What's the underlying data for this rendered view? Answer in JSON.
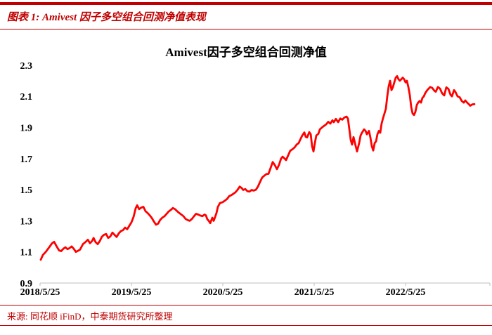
{
  "header": {
    "title": "图表 1: Amivest 因子多空组合回测净值表现"
  },
  "footer": {
    "source": "来源: 同花顺 iFinD，中泰期货研究所整理"
  },
  "colors": {
    "accent_red": "#C00000",
    "line_red": "#FE0000",
    "axis_gray": "#BFBFBF",
    "text_black": "#000000"
  },
  "chart_data": {
    "type": "line",
    "title": "Amivest因子多空组合回测净值",
    "legend": "none",
    "grid": "off",
    "line_color": "#FE0000",
    "x_axis": {
      "tick_labels": [
        "2018/5/25",
        "2019/5/25",
        "2020/5/25",
        "2021/5/25",
        "2022/5/25"
      ],
      "tick_years_from_start": [
        0,
        1,
        2,
        3,
        4
      ],
      "axis_years_span": [
        0,
        4.92
      ]
    },
    "y_axis": {
      "ticks": [
        2.3,
        2.1,
        1.9,
        1.7,
        1.5,
        1.3,
        1.1,
        0.9
      ],
      "range": [
        0.9,
        2.3
      ]
    },
    "series": [
      {
        "name": "Amivest因子多空组合回测净值",
        "points_years_value": [
          [
            0.008,
            1.05
          ],
          [
            0.031,
            1.08
          ],
          [
            0.062,
            1.1
          ],
          [
            0.1,
            1.13
          ],
          [
            0.131,
            1.155
          ],
          [
            0.154,
            1.165
          ],
          [
            0.177,
            1.14
          ],
          [
            0.208,
            1.11
          ],
          [
            0.231,
            1.105
          ],
          [
            0.254,
            1.12
          ],
          [
            0.277,
            1.13
          ],
          [
            0.3,
            1.118
          ],
          [
            0.323,
            1.125
          ],
          [
            0.346,
            1.135
          ],
          [
            0.369,
            1.12
          ],
          [
            0.392,
            1.1
          ],
          [
            0.415,
            1.107
          ],
          [
            0.438,
            1.115
          ],
          [
            0.469,
            1.15
          ],
          [
            0.5,
            1.165
          ],
          [
            0.523,
            1.178
          ],
          [
            0.546,
            1.156
          ],
          [
            0.569,
            1.17
          ],
          [
            0.585,
            1.19
          ],
          [
            0.608,
            1.163
          ],
          [
            0.631,
            1.15
          ],
          [
            0.654,
            1.17
          ],
          [
            0.677,
            1.198
          ],
          [
            0.7,
            1.21
          ],
          [
            0.723,
            1.215
          ],
          [
            0.746,
            1.19
          ],
          [
            0.769,
            1.2
          ],
          [
            0.792,
            1.224
          ],
          [
            0.815,
            1.21
          ],
          [
            0.838,
            1.196
          ],
          [
            0.862,
            1.22
          ],
          [
            0.885,
            1.234
          ],
          [
            0.908,
            1.24
          ],
          [
            0.931,
            1.256
          ],
          [
            0.954,
            1.246
          ],
          [
            0.977,
            1.268
          ],
          [
            1.0,
            1.29
          ],
          [
            1.023,
            1.325
          ],
          [
            1.046,
            1.38
          ],
          [
            1.062,
            1.4
          ],
          [
            1.085,
            1.375
          ],
          [
            1.108,
            1.385
          ],
          [
            1.131,
            1.39
          ],
          [
            1.154,
            1.362
          ],
          [
            1.177,
            1.35
          ],
          [
            1.2,
            1.335
          ],
          [
            1.223,
            1.318
          ],
          [
            1.246,
            1.295
          ],
          [
            1.269,
            1.275
          ],
          [
            1.292,
            1.282
          ],
          [
            1.315,
            1.306
          ],
          [
            1.338,
            1.32
          ],
          [
            1.362,
            1.33
          ],
          [
            1.385,
            1.345
          ],
          [
            1.408,
            1.36
          ],
          [
            1.431,
            1.37
          ],
          [
            1.454,
            1.382
          ],
          [
            1.477,
            1.375
          ],
          [
            1.5,
            1.362
          ],
          [
            1.523,
            1.35
          ],
          [
            1.546,
            1.34
          ],
          [
            1.569,
            1.33
          ],
          [
            1.592,
            1.312
          ],
          [
            1.615,
            1.305
          ],
          [
            1.638,
            1.3
          ],
          [
            1.662,
            1.312
          ],
          [
            1.685,
            1.33
          ],
          [
            1.708,
            1.345
          ],
          [
            1.731,
            1.34
          ],
          [
            1.754,
            1.334
          ],
          [
            1.777,
            1.33
          ],
          [
            1.8,
            1.34
          ],
          [
            1.815,
            1.335
          ],
          [
            1.831,
            1.31
          ],
          [
            1.846,
            1.3
          ],
          [
            1.862,
            1.285
          ],
          [
            1.885,
            1.32
          ],
          [
            1.9,
            1.3
          ],
          [
            1.915,
            1.324
          ],
          [
            1.931,
            1.35
          ],
          [
            1.946,
            1.39
          ],
          [
            1.969,
            1.414
          ],
          [
            2.0,
            1.42
          ],
          [
            2.023,
            1.43
          ],
          [
            2.046,
            1.44
          ],
          [
            2.069,
            1.458
          ],
          [
            2.092,
            1.465
          ],
          [
            2.115,
            1.474
          ],
          [
            2.138,
            1.483
          ],
          [
            2.162,
            1.5
          ],
          [
            2.185,
            1.52
          ],
          [
            2.208,
            1.51
          ],
          [
            2.223,
            1.498
          ],
          [
            2.246,
            1.504
          ],
          [
            2.269,
            1.49
          ],
          [
            2.292,
            1.488
          ],
          [
            2.315,
            1.498
          ],
          [
            2.338,
            1.494
          ],
          [
            2.362,
            1.5
          ],
          [
            2.385,
            1.52
          ],
          [
            2.408,
            1.55
          ],
          [
            2.431,
            1.578
          ],
          [
            2.454,
            1.59
          ],
          [
            2.477,
            1.6
          ],
          [
            2.5,
            1.602
          ],
          [
            2.523,
            1.64
          ],
          [
            2.546,
            1.678
          ],
          [
            2.569,
            1.658
          ],
          [
            2.592,
            1.632
          ],
          [
            2.615,
            1.66
          ],
          [
            2.638,
            1.7
          ],
          [
            2.654,
            1.712
          ],
          [
            2.677,
            1.7
          ],
          [
            2.692,
            1.69
          ],
          [
            2.715,
            1.72
          ],
          [
            2.738,
            1.75
          ],
          [
            2.762,
            1.76
          ],
          [
            2.785,
            1.772
          ],
          [
            2.808,
            1.79
          ],
          [
            2.831,
            1.8
          ],
          [
            2.846,
            1.82
          ],
          [
            2.869,
            1.848
          ],
          [
            2.892,
            1.868
          ],
          [
            2.908,
            1.84
          ],
          [
            2.923,
            1.836
          ],
          [
            2.946,
            1.87
          ],
          [
            2.962,
            1.856
          ],
          [
            2.977,
            1.78
          ],
          [
            2.992,
            1.746
          ],
          [
            3.008,
            1.8
          ],
          [
            3.023,
            1.848
          ],
          [
            3.046,
            1.86
          ],
          [
            3.062,
            1.888
          ],
          [
            3.085,
            1.9
          ],
          [
            3.108,
            1.91
          ],
          [
            3.131,
            1.92
          ],
          [
            3.154,
            1.936
          ],
          [
            3.177,
            1.925
          ],
          [
            3.2,
            1.946
          ],
          [
            3.215,
            1.934
          ],
          [
            3.238,
            1.955
          ],
          [
            3.262,
            1.934
          ],
          [
            3.285,
            1.958
          ],
          [
            3.308,
            1.95
          ],
          [
            3.331,
            1.964
          ],
          [
            3.354,
            1.97
          ],
          [
            3.369,
            1.958
          ],
          [
            3.385,
            1.89
          ],
          [
            3.4,
            1.82
          ],
          [
            3.415,
            1.79
          ],
          [
            3.431,
            1.838
          ],
          [
            3.446,
            1.8
          ],
          [
            3.469,
            1.746
          ],
          [
            3.492,
            1.8
          ],
          [
            3.508,
            1.848
          ],
          [
            3.523,
            1.866
          ],
          [
            3.546,
            1.888
          ],
          [
            3.562,
            1.878
          ],
          [
            3.577,
            1.856
          ],
          [
            3.6,
            1.878
          ],
          [
            3.615,
            1.835
          ],
          [
            3.631,
            1.78
          ],
          [
            3.646,
            1.752
          ],
          [
            3.662,
            1.8
          ],
          [
            3.677,
            1.81
          ],
          [
            3.692,
            1.856
          ],
          [
            3.708,
            1.878
          ],
          [
            3.723,
            1.866
          ],
          [
            3.738,
            1.924
          ],
          [
            3.754,
            1.96
          ],
          [
            3.769,
            1.99
          ],
          [
            3.785,
            2.02
          ],
          [
            3.8,
            2.1
          ],
          [
            3.815,
            2.165
          ],
          [
            3.831,
            2.2
          ],
          [
            3.846,
            2.14
          ],
          [
            3.862,
            2.16
          ],
          [
            3.877,
            2.19
          ],
          [
            3.892,
            2.22
          ],
          [
            3.908,
            2.23
          ],
          [
            3.923,
            2.21
          ],
          [
            3.938,
            2.2
          ],
          [
            3.954,
            2.21
          ],
          [
            3.969,
            2.22
          ],
          [
            3.985,
            2.21
          ],
          [
            4.0,
            2.19
          ],
          [
            4.015,
            2.2
          ],
          [
            4.031,
            2.16
          ],
          [
            4.046,
            2.11
          ],
          [
            4.062,
            2.03
          ],
          [
            4.077,
            1.99
          ],
          [
            4.092,
            1.98
          ],
          [
            4.108,
            2.0
          ],
          [
            4.123,
            2.044
          ],
          [
            4.138,
            2.06
          ],
          [
            4.154,
            2.07
          ],
          [
            4.169,
            2.06
          ],
          [
            4.185,
            2.09
          ],
          [
            4.2,
            2.1
          ],
          [
            4.215,
            2.12
          ],
          [
            4.238,
            2.14
          ],
          [
            4.254,
            2.15
          ],
          [
            4.269,
            2.16
          ],
          [
            4.292,
            2.154
          ],
          [
            4.315,
            2.136
          ],
          [
            4.331,
            2.13
          ],
          [
            4.354,
            2.16
          ],
          [
            4.377,
            2.15
          ],
          [
            4.4,
            2.12
          ],
          [
            4.423,
            2.106
          ],
          [
            4.446,
            2.158
          ],
          [
            4.469,
            2.148
          ],
          [
            4.492,
            2.11
          ],
          [
            4.508,
            2.1
          ],
          [
            4.531,
            2.14
          ],
          [
            4.546,
            2.128
          ],
          [
            4.569,
            2.1
          ],
          [
            4.592,
            2.094
          ],
          [
            4.615,
            2.07
          ],
          [
            4.638,
            2.06
          ],
          [
            4.654,
            2.074
          ],
          [
            4.677,
            2.058
          ],
          [
            4.692,
            2.05
          ],
          [
            4.708,
            2.04
          ],
          [
            4.731,
            2.048
          ],
          [
            4.754,
            2.05
          ]
        ]
      }
    ]
  }
}
